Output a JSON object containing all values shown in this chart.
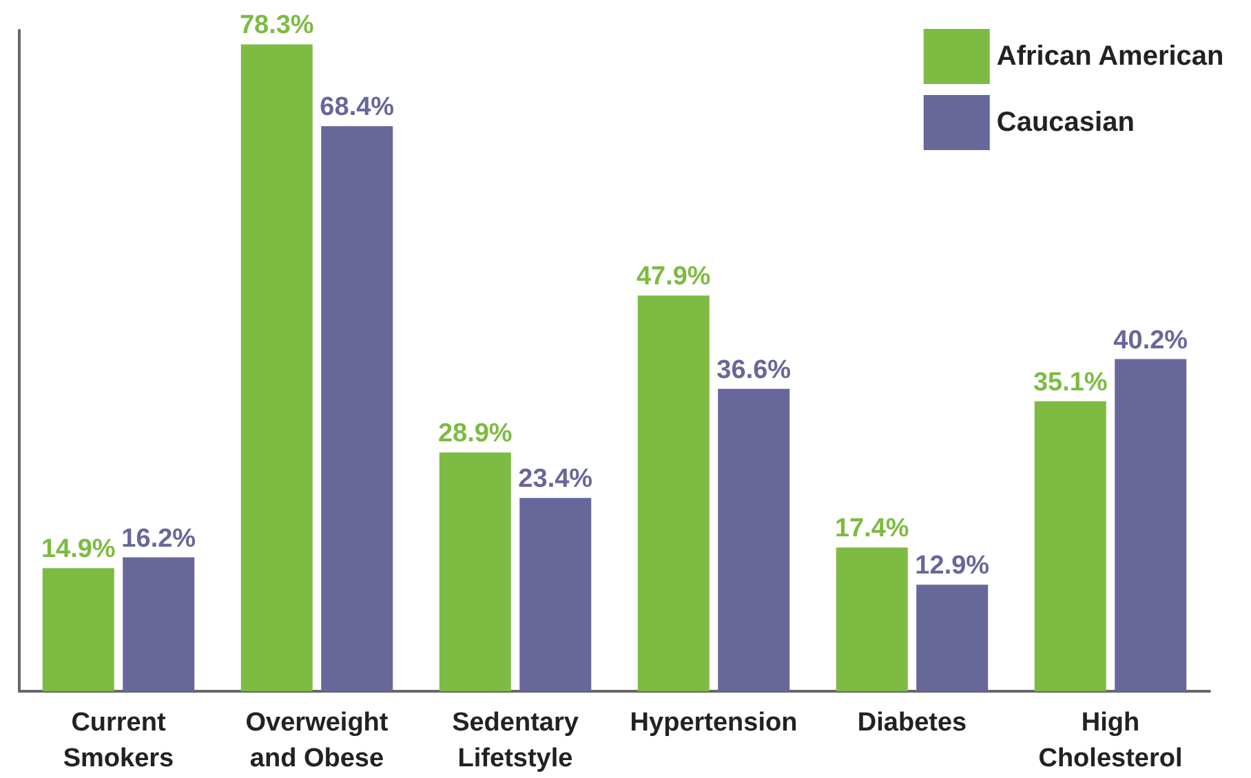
{
  "chart_data": {
    "type": "bar",
    "categories": [
      "Current\nSmokers",
      "Overweight\nand Obese",
      "Sedentary\nLifetstyle",
      "Hypertension",
      "Diabetes",
      "High\nCholesterol"
    ],
    "series": [
      {
        "name": "African American",
        "color": "#7dbb42",
        "values": [
          14.9,
          78.3,
          28.9,
          47.9,
          17.4,
          35.1
        ],
        "value_labels": [
          "14.9%",
          "78.3%",
          "28.9%",
          "47.9%",
          "17.4%",
          "35.1%"
        ]
      },
      {
        "name": "Caucasian",
        "color": "#67679a",
        "values": [
          16.2,
          68.4,
          23.4,
          36.6,
          12.9,
          40.2
        ],
        "value_labels": [
          "16.2%",
          "68.4%",
          "23.4%",
          "36.6%",
          "12.9%",
          "40.2%"
        ]
      }
    ],
    "legend": "top right",
    "grid": false,
    "tick_labels": "x"
  }
}
